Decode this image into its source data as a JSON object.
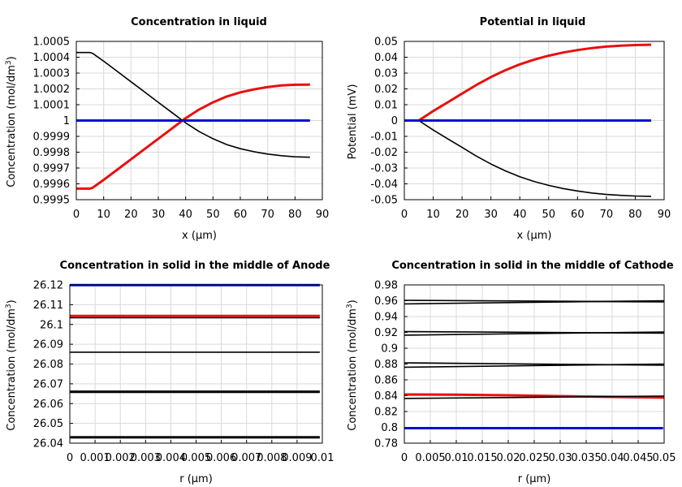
{
  "figure": {
    "colors": {
      "black": "#000000",
      "red": "#e8100f",
      "blue": "#0010d8",
      "grid": "#d9d9d9"
    }
  },
  "chart_data": [
    {
      "type": "line",
      "title": "Concentration in liquid",
      "xlabel": "x (µm)",
      "ylabel": "Concentration (mol/dm3)",
      "ylabel_main": "Concentration (mol/dm",
      "ylabel_sup": "3",
      "ylabel_tail": ")",
      "xlim": [
        0,
        90
      ],
      "ylim": [
        0.9995,
        1.0005
      ],
      "xticks": [
        "0",
        "10",
        "20",
        "30",
        "40",
        "50",
        "60",
        "70",
        "80",
        "90"
      ],
      "yticks": [
        "0.9995",
        "0.9996",
        "0.9997",
        "0.9998",
        "0.9999",
        "1",
        "1.0001",
        "1.0002",
        "1.0003",
        "1.0004",
        "1.0005"
      ],
      "grid": true,
      "series": [
        {
          "color": "black",
          "x": [
            0,
            5,
            6,
            10,
            15,
            20,
            25,
            30,
            35,
            40,
            45,
            50,
            55,
            60,
            65,
            70,
            75,
            80,
            85.5
          ],
          "y": [
            1.00043,
            1.00043,
            1.000424,
            1.000375,
            1.00031,
            1.000245,
            1.00018,
            1.000115,
            1.00005,
            0.999985,
            0.99993,
            0.999885,
            0.999848,
            0.999822,
            0.999803,
            0.999788,
            0.999778,
            0.999771,
            0.999768
          ]
        },
        {
          "color": "red",
          "x": [
            0,
            5,
            6,
            10,
            15,
            20,
            25,
            30,
            35,
            40,
            45,
            50,
            55,
            60,
            65,
            70,
            75,
            80,
            85.5
          ],
          "y": [
            0.99957,
            0.99957,
            0.999576,
            0.999625,
            0.99969,
            0.999755,
            0.99982,
            0.999885,
            0.99995,
            1.000015,
            1.00007,
            1.000115,
            1.000152,
            1.000178,
            1.000197,
            1.000212,
            1.000222,
            1.000226,
            1.000227
          ]
        },
        {
          "color": "blue",
          "x": [
            0,
            85.5
          ],
          "y": [
            1.0,
            1.0
          ]
        }
      ]
    },
    {
      "type": "line",
      "title": "Potential in liquid",
      "xlabel": "x (µm)",
      "ylabel": "Potential (mV)",
      "ylabel_main": "Potential (mV)",
      "ylabel_sup": "",
      "ylabel_tail": "",
      "xlim": [
        0,
        90
      ],
      "ylim": [
        -0.05,
        0.05
      ],
      "xticks": [
        "0",
        "10",
        "20",
        "30",
        "40",
        "50",
        "60",
        "70",
        "80",
        "90"
      ],
      "yticks": [
        "-0.05",
        "-0.04",
        "-0.03",
        "-0.02",
        "-0.01",
        "0",
        "0.01",
        "0.02",
        "0.03",
        "0.04",
        "0.05"
      ],
      "grid": true,
      "series": [
        {
          "color": "red",
          "x": [
            0,
            5,
            10,
            15,
            20,
            25,
            30,
            35,
            40,
            45,
            50,
            55,
            60,
            65,
            70,
            75,
            80,
            85.5
          ],
          "y": [
            0,
            0,
            0.006,
            0.0115,
            0.017,
            0.0225,
            0.0275,
            0.0318,
            0.0355,
            0.0385,
            0.041,
            0.043,
            0.0445,
            0.0458,
            0.0467,
            0.0473,
            0.0477,
            0.0479
          ]
        },
        {
          "color": "black",
          "x": [
            0,
            5,
            10,
            15,
            20,
            25,
            30,
            35,
            40,
            45,
            50,
            55,
            60,
            65,
            70,
            75,
            80,
            85.5
          ],
          "y": [
            0,
            0,
            -0.006,
            -0.0115,
            -0.017,
            -0.0225,
            -0.0275,
            -0.0318,
            -0.0355,
            -0.0385,
            -0.041,
            -0.043,
            -0.0445,
            -0.0458,
            -0.0467,
            -0.0473,
            -0.0477,
            -0.0479
          ]
        },
        {
          "color": "blue",
          "x": [
            0,
            85.5
          ],
          "y": [
            0,
            0
          ]
        }
      ]
    },
    {
      "type": "line",
      "title": "Concentration in solid in the middle of Anode",
      "xlabel": "r (µm)",
      "ylabel": "Concentration (mol/dm3)",
      "ylabel_main": "Concentration (mol/dm",
      "ylabel_sup": "3",
      "ylabel_tail": ")",
      "xlim": [
        0,
        0.01
      ],
      "ylim": [
        26.04,
        26.12
      ],
      "xticks": [
        "0",
        "0.001",
        "0.002",
        "0.003",
        "0.004",
        "0.005",
        "0.006",
        "0.007",
        "0.008",
        "0.009",
        "0.01"
      ],
      "yticks": [
        "26.04",
        "26.05",
        "26.06",
        "26.07",
        "26.08",
        "26.09",
        "26.1",
        "26.11",
        "26.12"
      ],
      "grid": true,
      "series": [
        {
          "color": "blue",
          "x": [
            0,
            0.0099
          ],
          "y": [
            26.1199,
            26.1199
          ]
        },
        {
          "color": "red",
          "x": [
            0,
            0.0099
          ],
          "y": [
            26.1043,
            26.1043
          ]
        },
        {
          "color": "black",
          "x": [
            0,
            0.0099
          ],
          "y": [
            26.1034,
            26.1034
          ]
        },
        {
          "color": "black",
          "x": [
            0,
            0.0099
          ],
          "y": [
            26.086,
            26.086
          ]
        },
        {
          "color": "black",
          "x": [
            0,
            0.0099
          ],
          "y": [
            26.0663,
            26.0663
          ]
        },
        {
          "color": "black",
          "x": [
            0,
            0.0099
          ],
          "y": [
            26.0657,
            26.0657
          ]
        },
        {
          "color": "black",
          "x": [
            0,
            0.0099
          ],
          "y": [
            26.0433,
            26.0433
          ]
        },
        {
          "color": "black",
          "x": [
            0,
            0.0099
          ],
          "y": [
            26.0427,
            26.0427
          ]
        }
      ]
    },
    {
      "type": "line",
      "title": "Concentration in solid in the middle of Cathode",
      "xlabel": "r (µm)",
      "ylabel": "Concentration (mol/dm3)",
      "ylabel_main": "Concentration (mol/dm",
      "ylabel_sup": "3",
      "ylabel_tail": ")",
      "xlim": [
        0,
        0.05
      ],
      "ylim": [
        0.78,
        0.98
      ],
      "xticks": [
        "0",
        "0.005",
        "0.01",
        "0.015",
        "0.02",
        "0.025",
        "0.03",
        "0.035",
        "0.04",
        "0.045",
        "0.05"
      ],
      "yticks": [
        "0.78",
        "0.8",
        "0.82",
        "0.84",
        "0.86",
        "0.88",
        "0.9",
        "0.92",
        "0.94",
        "0.96",
        "0.98"
      ],
      "grid": true,
      "series": [
        {
          "color": "black",
          "x": [
            0,
            0.05
          ],
          "y": [
            0.9605,
            0.9585
          ]
        },
        {
          "color": "black",
          "x": [
            0,
            0.05
          ],
          "y": [
            0.956,
            0.96
          ]
        },
        {
          "color": "black",
          "x": [
            0,
            0.05
          ],
          "y": [
            0.921,
            0.919
          ]
        },
        {
          "color": "black",
          "x": [
            0,
            0.05
          ],
          "y": [
            0.9165,
            0.9205
          ]
        },
        {
          "color": "black",
          "x": [
            0,
            0.05
          ],
          "y": [
            0.8815,
            0.8785
          ]
        },
        {
          "color": "black",
          "x": [
            0,
            0.05
          ],
          "y": [
            0.876,
            0.88
          ]
        },
        {
          "color": "red",
          "x": [
            0,
            0.01,
            0.02,
            0.03,
            0.04,
            0.05
          ],
          "y": [
            0.8415,
            0.8413,
            0.8405,
            0.8395,
            0.8385,
            0.8375
          ]
        },
        {
          "color": "black",
          "x": [
            0,
            0.05
          ],
          "y": [
            0.8365,
            0.8395
          ]
        },
        {
          "color": "blue",
          "x": [
            0,
            0.0498
          ],
          "y": [
            0.799,
            0.799
          ]
        }
      ]
    }
  ]
}
